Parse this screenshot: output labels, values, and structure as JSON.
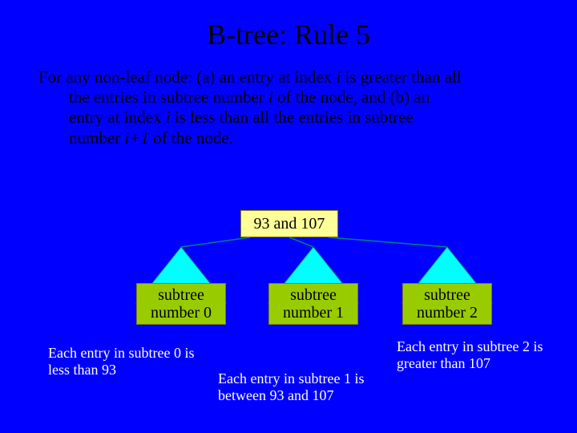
{
  "title": "B-tree: Rule 5",
  "paragraph": {
    "lead": "For any non-leaf node: (a) an entry at index ",
    "i1": "i",
    "p2": " is greater than all",
    "line2a": "the entries in subtree number ",
    "i2": "i",
    "line2b": " of the node, and (b) an",
    "line3a": "entry at index ",
    "i3": "i",
    "line3b": " is less than all the entries in subtree",
    "line4a": "number ",
    "i4": "i+1",
    "line4b": " of the node."
  },
  "diagram": {
    "root_label": "93 and 107",
    "subtrees": [
      {
        "label": "subtree\nnumber 0"
      },
      {
        "label": "subtree\nnumber 1"
      },
      {
        "label": "subtree\nnumber 2"
      }
    ],
    "triangle_fill": "#00ffff",
    "triangle_stroke": "#008080",
    "box_fill": "#ffff99",
    "subtree_fill": "#99cc00",
    "border_color": "#808000"
  },
  "notes": {
    "n0": "Each entry in subtree 0 is less than 93",
    "n1": "Each entry in subtree 1 is between 93 and 107",
    "n2": "Each entry in subtree 2 is greater than 107"
  },
  "colors": {
    "background": "#0000ff",
    "text_white": "#ffffff",
    "text_black": "#000000"
  },
  "fonts": {
    "title_pt": 36,
    "body_pt": 21,
    "box_pt": 20,
    "note_pt": 18
  }
}
